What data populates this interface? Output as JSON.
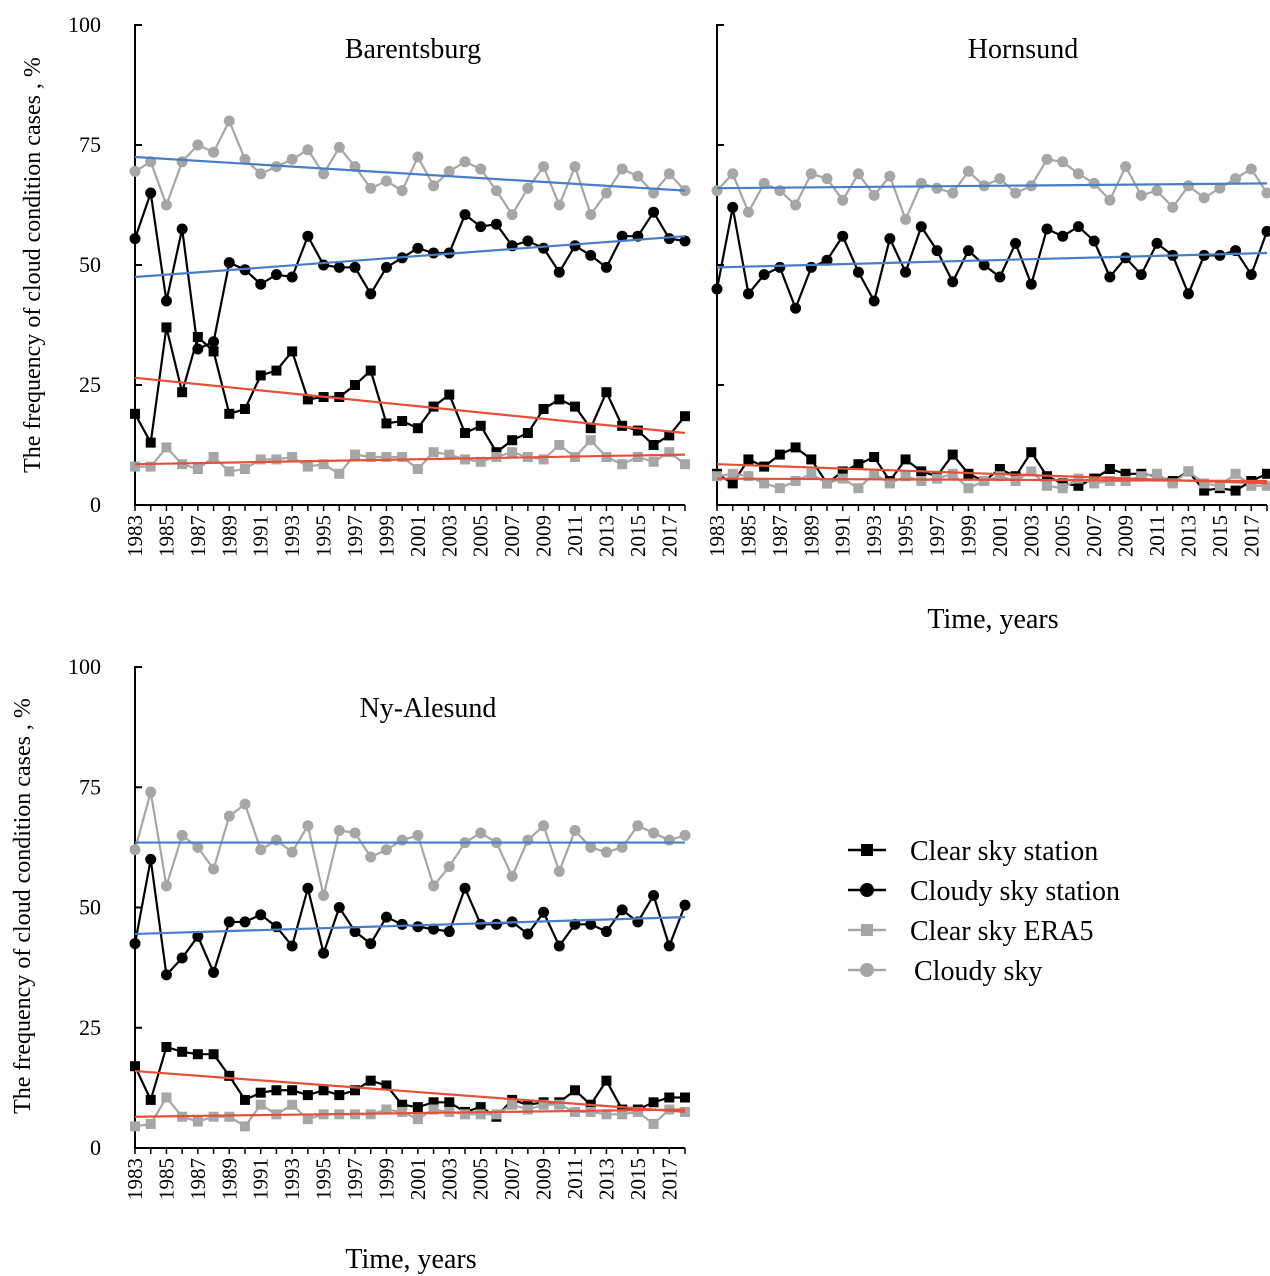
{
  "figure": {
    "ylabel": "The frequency of cloud condition cases , %",
    "xlabel": "Time, years"
  },
  "legend": {
    "items": [
      {
        "label": "Clear sky station",
        "marker": "square",
        "color": "#000000"
      },
      {
        "label": "Cloudy sky station",
        "marker": "circle",
        "color": "#000000"
      },
      {
        "label": "Clear sky ERA5",
        "marker": "square",
        "color": "#a6a6a6"
      },
      {
        "label": "Cloudy sky",
        "marker": "circle",
        "color": "#a6a6a6"
      }
    ]
  },
  "colors": {
    "station": "#000000",
    "era5": "#a6a6a6",
    "trend_cloudy": "#4a7ec4",
    "trend_clear": "#e4503a"
  },
  "chart_data": [
    {
      "type": "line",
      "title": "Barentsburg",
      "ylabel": "The frequency of cloud condition cases , %",
      "xlabel": "",
      "ylim": [
        0,
        100
      ],
      "yticks": [
        0,
        25,
        50,
        75,
        100
      ],
      "xlim": [
        1983,
        2018
      ],
      "xticks": [
        "1983",
        "1985",
        "1987",
        "1989",
        "1991",
        "1993",
        "1995",
        "1997",
        "1999",
        "2001",
        "2003",
        "2005",
        "2007",
        "2009",
        "2011",
        "2013",
        "2015",
        "2017"
      ],
      "x": [
        1983,
        1984,
        1985,
        1986,
        1987,
        1988,
        1989,
        1990,
        1991,
        1992,
        1993,
        1994,
        1995,
        1996,
        1997,
        1998,
        1999,
        2000,
        2001,
        2002,
        2003,
        2004,
        2005,
        2006,
        2007,
        2008,
        2009,
        2010,
        2011,
        2012,
        2013,
        2014,
        2015,
        2016,
        2017,
        2018
      ],
      "series": [
        {
          "name": "Clear sky station",
          "marker": "square",
          "color": "#000000",
          "values": [
            19,
            13,
            37,
            23.5,
            35,
            32,
            19,
            20,
            27,
            28,
            32,
            22,
            22.5,
            22.5,
            25,
            28,
            17,
            17.5,
            16,
            20.5,
            23,
            15,
            16.5,
            11,
            13.5,
            15,
            20,
            22,
            20.5,
            16,
            23.5,
            16.5,
            15.5,
            12.5,
            14.5,
            18.5
          ]
        },
        {
          "name": "Cloudy sky station",
          "marker": "circle",
          "color": "#000000",
          "values": [
            55.5,
            65,
            42.5,
            57.5,
            32.5,
            34,
            50.5,
            49,
            46,
            48,
            47.5,
            56,
            50,
            49.5,
            49.5,
            44,
            49.5,
            51.5,
            53.5,
            52.5,
            52.5,
            60.5,
            58,
            58.5,
            54,
            55,
            53.5,
            48.5,
            54,
            52,
            49.5,
            56,
            56,
            61,
            55.5,
            55
          ]
        },
        {
          "name": "Clear sky ERA5",
          "marker": "square",
          "color": "#a6a6a6",
          "values": [
            8,
            8,
            12,
            8.5,
            7.5,
            10,
            7,
            7.5,
            9.5,
            9.5,
            10,
            8,
            8.5,
            6.5,
            10.5,
            10,
            10,
            10,
            7.5,
            11,
            10.5,
            9.5,
            9,
            10,
            11,
            10,
            9.5,
            12.5,
            10,
            13.5,
            10,
            8.5,
            10,
            9,
            11,
            8.5
          ]
        },
        {
          "name": "Cloudy sky",
          "marker": "circle",
          "color": "#a6a6a6",
          "values": [
            69.5,
            71.5,
            62.5,
            71.5,
            75,
            73.5,
            80,
            72,
            69,
            70.5,
            72,
            74,
            69,
            74.5,
            70.5,
            66,
            67.5,
            65.5,
            72.5,
            66.5,
            69.5,
            71.5,
            70,
            65.5,
            60.5,
            66,
            70.5,
            62.5,
            70.5,
            60.5,
            65,
            70,
            68.5,
            65,
            69,
            65.5
          ]
        }
      ],
      "trends": [
        {
          "series": "Cloudy sky",
          "color": "#4a7ec4",
          "from": [
            1983,
            72.5
          ],
          "to": [
            2018,
            65.5
          ]
        },
        {
          "series": "Cloudy sky station",
          "color": "#4a7ec4",
          "from": [
            1983,
            47.5
          ],
          "to": [
            2018,
            56
          ]
        },
        {
          "series": "Clear sky station",
          "color": "#e4503a",
          "from": [
            1983,
            26.5
          ],
          "to": [
            2018,
            15
          ]
        },
        {
          "series": "Clear sky ERA5",
          "color": "#e4503a",
          "from": [
            1983,
            8.5
          ],
          "to": [
            2018,
            10.5
          ]
        }
      ]
    },
    {
      "type": "line",
      "title": "Hornsund",
      "ylabel": "",
      "xlabel": "Time, years",
      "ylim": [
        0,
        100
      ],
      "yticks": [
        0,
        25,
        50,
        75,
        100
      ],
      "xlim": [
        1983,
        2018
      ],
      "xticks": [
        "1983",
        "1985",
        "1987",
        "1989",
        "1991",
        "1993",
        "1995",
        "1997",
        "1999",
        "2001",
        "2003",
        "2005",
        "2007",
        "2009",
        "2011",
        "2013",
        "2015",
        "2017"
      ],
      "x": [
        1983,
        1984,
        1985,
        1986,
        1987,
        1988,
        1989,
        1990,
        1991,
        1992,
        1993,
        1994,
        1995,
        1996,
        1997,
        1998,
        1999,
        2000,
        2001,
        2002,
        2003,
        2004,
        2005,
        2006,
        2007,
        2008,
        2009,
        2010,
        2011,
        2012,
        2013,
        2014,
        2015,
        2016,
        2017,
        2018
      ],
      "series": [
        {
          "name": "Clear sky station",
          "marker": "square",
          "color": "#000000",
          "values": [
            6.5,
            4.5,
            9.5,
            8,
            10.5,
            12,
            9.5,
            4.5,
            7,
            8.5,
            10,
            5,
            9.5,
            7,
            6,
            10.5,
            6.5,
            5,
            7.5,
            6,
            11,
            6,
            4.5,
            4,
            5.5,
            7.5,
            6.5,
            6.5,
            6,
            5,
            7,
            3,
            3.5,
            3,
            5,
            6.5
          ]
        },
        {
          "name": "Cloudy sky station",
          "marker": "circle",
          "color": "#000000",
          "values": [
            45,
            62,
            44,
            48,
            49.5,
            41,
            49.5,
            51,
            56,
            48.5,
            42.5,
            55.5,
            48.5,
            58,
            53,
            46.5,
            53,
            50,
            47.5,
            54.5,
            46,
            57.5,
            56,
            58,
            55,
            47.5,
            51.5,
            48,
            54.5,
            52,
            44,
            52,
            52,
            53,
            48,
            57
          ]
        },
        {
          "name": "Clear sky ERA5",
          "marker": "square",
          "color": "#a6a6a6",
          "values": [
            6,
            6.5,
            6,
            4.5,
            3.5,
            5,
            6.5,
            4.5,
            5.5,
            3.5,
            6.5,
            4.5,
            6,
            5,
            5.5,
            6.5,
            3.5,
            5,
            6,
            5,
            7,
            4,
            3.5,
            5.5,
            4.5,
            5,
            5,
            6,
            6.5,
            4.5,
            7,
            4.5,
            4,
            6.5,
            4,
            4
          ]
        },
        {
          "name": "Cloudy sky",
          "marker": "circle",
          "color": "#a6a6a6",
          "values": [
            65.5,
            69,
            61,
            67,
            65.5,
            62.5,
            69,
            68,
            63.5,
            69,
            64.5,
            68.5,
            59.5,
            67,
            66,
            65,
            69.5,
            66.5,
            68,
            65,
            66.5,
            72,
            71.5,
            69,
            67,
            63.5,
            70.5,
            64.5,
            65.5,
            62,
            66.5,
            64,
            66,
            68,
            70,
            65
          ]
        }
      ],
      "trends": [
        {
          "series": "Cloudy sky",
          "color": "#4a7ec4",
          "from": [
            1983,
            66
          ],
          "to": [
            2018,
            67
          ]
        },
        {
          "series": "Cloudy sky station",
          "color": "#4a7ec4",
          "from": [
            1983,
            49.5
          ],
          "to": [
            2018,
            52.5
          ]
        },
        {
          "series": "Clear sky station",
          "color": "#e4503a",
          "from": [
            1983,
            8.5
          ],
          "to": [
            2018,
            4.5
          ]
        },
        {
          "series": "Clear sky ERA5",
          "color": "#e4503a",
          "from": [
            1983,
            5.5
          ],
          "to": [
            2018,
            5
          ]
        }
      ]
    },
    {
      "type": "line",
      "title": "Ny-Alesund",
      "ylabel": "The frequency of cloud condition cases , %",
      "xlabel": "Time, years",
      "ylim": [
        0,
        100
      ],
      "yticks": [
        0,
        25,
        50,
        75,
        100
      ],
      "xlim": [
        1983,
        2018
      ],
      "xticks": [
        "1983",
        "1985",
        "1987",
        "1989",
        "1991",
        "1993",
        "1995",
        "1997",
        "1999",
        "2001",
        "2003",
        "2005",
        "2007",
        "2009",
        "2011",
        "2013",
        "2015",
        "2017"
      ],
      "x": [
        1983,
        1984,
        1985,
        1986,
        1987,
        1988,
        1989,
        1990,
        1991,
        1992,
        1993,
        1994,
        1995,
        1996,
        1997,
        1998,
        1999,
        2000,
        2001,
        2002,
        2003,
        2004,
        2005,
        2006,
        2007,
        2008,
        2009,
        2010,
        2011,
        2012,
        2013,
        2014,
        2015,
        2016,
        2017,
        2018
      ],
      "series": [
        {
          "name": "Clear sky station",
          "marker": "square",
          "color": "#000000",
          "values": [
            17,
            10,
            21,
            20,
            19.5,
            19.5,
            15,
            10,
            11.5,
            12,
            12,
            11,
            12,
            11,
            12,
            14,
            13,
            9,
            8.5,
            9.5,
            9.5,
            7.5,
            8.5,
            6.5,
            10,
            9,
            9.5,
            9.5,
            12,
            9,
            14,
            8,
            8,
            9.5,
            10.5,
            10.5
          ]
        },
        {
          "name": "Cloudy sky station",
          "marker": "circle",
          "color": "#000000",
          "values": [
            42.5,
            60,
            36,
            39.5,
            44,
            36.5,
            47,
            47,
            48.5,
            46,
            42,
            54,
            40.5,
            50,
            45,
            42.5,
            48,
            46.5,
            46,
            45.5,
            45,
            54,
            46.5,
            46.5,
            47,
            44.5,
            49,
            42,
            46.5,
            46.5,
            45,
            49.5,
            47,
            52.5,
            42,
            50.5
          ]
        },
        {
          "name": "Clear sky ERA5",
          "marker": "square",
          "color": "#a6a6a6",
          "values": [
            4.5,
            5,
            10.5,
            6.5,
            5.5,
            6.5,
            6.5,
            4.5,
            9,
            7,
            9,
            6,
            7,
            7,
            7,
            7,
            8,
            7.5,
            6,
            8,
            7.5,
            7,
            7,
            7,
            9,
            8,
            9,
            9,
            7.5,
            7.5,
            7,
            7,
            7.5,
            5,
            8,
            7.5
          ]
        },
        {
          "name": "Cloudy sky",
          "marker": "circle",
          "color": "#a6a6a6",
          "values": [
            62,
            74,
            54.5,
            65,
            62.5,
            58,
            69,
            71.5,
            62,
            64,
            61.5,
            67,
            52.5,
            66,
            65.5,
            60.5,
            62,
            64,
            65,
            54.5,
            58.5,
            63.5,
            65.5,
            63.5,
            56.5,
            64,
            67,
            57.5,
            66,
            62.5,
            61.5,
            62.5,
            67,
            65.5,
            64,
            65
          ]
        }
      ],
      "trends": [
        {
          "series": "Cloudy sky",
          "color": "#4a7ec4",
          "from": [
            1983,
            63.5
          ],
          "to": [
            2018,
            63.5
          ]
        },
        {
          "series": "Cloudy sky station",
          "color": "#4a7ec4",
          "from": [
            1983,
            44.5
          ],
          "to": [
            2018,
            48
          ]
        },
        {
          "series": "Clear sky station",
          "color": "#e4503a",
          "from": [
            1983,
            16
          ],
          "to": [
            2018,
            7.5
          ]
        },
        {
          "series": "Clear sky ERA5",
          "color": "#e4503a",
          "from": [
            1983,
            6.5
          ],
          "to": [
            2018,
            8
          ]
        }
      ]
    }
  ]
}
